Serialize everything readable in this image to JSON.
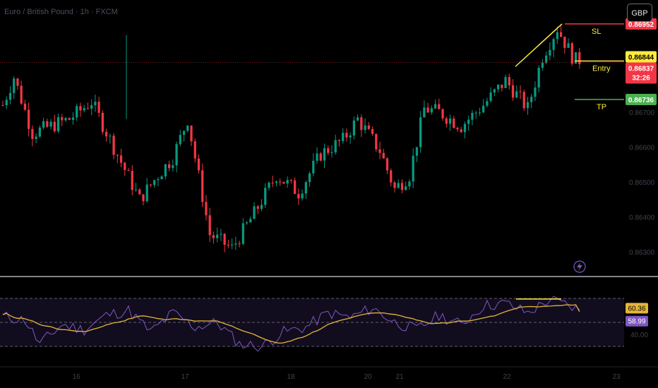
{
  "symbol_title": "Euro / British Pound · 1h · FXCM",
  "currency_button": "GBP",
  "colors": {
    "up": "#089981",
    "down": "#f23645",
    "sl": "#f23645",
    "entry": "#ffeb3b",
    "tp": "#4caf50",
    "rsi": "#7e57c2",
    "rsi_ma": "#e5b53a",
    "price_tag_last": "#f23645"
  },
  "price_axis": {
    "ticks": [
      "0.86700",
      "0.86600",
      "0.86500",
      "0.86400",
      "0.86300"
    ]
  },
  "price_tags": {
    "sl": "0.86952",
    "entry": "0.86844",
    "last": "0.86837",
    "countdown": "32:26",
    "tp": "0.86736"
  },
  "annotations": {
    "sl_label": "SL",
    "entry_label": "Entry",
    "tp_label": "TP"
  },
  "rsi_axis": {
    "ticks": [
      "40.00"
    ],
    "tags": [
      "60.36",
      "58.99"
    ]
  },
  "time_axis": {
    "ticks": [
      "16",
      "17",
      "18",
      "20",
      "21",
      "22",
      "23"
    ]
  },
  "chart_data": {
    "type": "candlestick",
    "timeframe": "1h",
    "candle_count": 120,
    "price_range": [
      0.8625,
      0.8698
    ],
    "open_first": 0.8672,
    "close_last": 0.86837,
    "levels": {
      "SL": 0.86952,
      "Entry": 0.86844,
      "TP": 0.86736
    },
    "rsi": {
      "range": [
        20,
        80
      ],
      "bands": [
        70,
        50,
        30
      ],
      "last_rsi": 60.36,
      "last_ma": 58.99
    }
  }
}
